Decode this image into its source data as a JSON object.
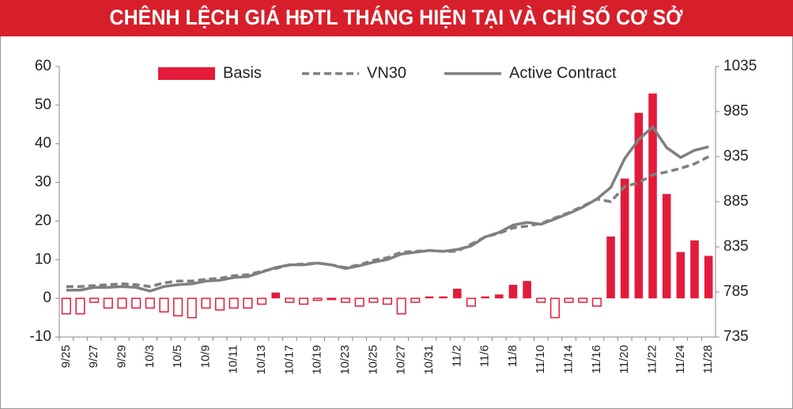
{
  "chart_data": {
    "type": "combo",
    "title": "CHÊNH LỆCH GIÁ HĐTL THÁNG HIỆN TẠI VÀ CHỈ SỐ CƠ SỞ",
    "categories": [
      "9/25",
      null,
      "9/27",
      null,
      "9/29",
      null,
      "10/3",
      null,
      "10/5",
      null,
      "10/9",
      null,
      "10/11",
      null,
      "10/13",
      null,
      "10/17",
      null,
      "10/19",
      null,
      "10/23",
      null,
      "10/25",
      null,
      "10/27",
      null,
      "10/31",
      null,
      "11/2",
      null,
      "11/6",
      null,
      "11/8",
      null,
      "11/10",
      null,
      "11/14",
      null,
      "11/16",
      null,
      "11/20",
      null,
      "11/22",
      null,
      "11/24",
      null,
      "11/28"
    ],
    "series": [
      {
        "name": "Basis",
        "type": "bar",
        "color": "#e31b3b",
        "values": [
          -4,
          -4,
          -1,
          -2.5,
          -2.5,
          -2.5,
          -2.5,
          -3.5,
          -4.5,
          -5,
          -2.5,
          -3,
          -2.5,
          -2.5,
          -1.5,
          1.5,
          -1,
          -1.5,
          -0.5,
          -0.3,
          -1,
          -2,
          -1,
          -1.5,
          -4,
          -1,
          0.5,
          0.5,
          2.5,
          -2,
          0.5,
          1,
          3.5,
          4.5,
          -1,
          -5,
          -1,
          -1,
          -2,
          16,
          31,
          48,
          53,
          27,
          12,
          15,
          11
        ]
      },
      {
        "name": "VN30",
        "type": "line",
        "style": "dashed",
        "axis": "y2",
        "color": "#7f7f7f",
        "values": [
          791,
          791,
          792,
          793,
          794,
          793,
          791,
          795,
          797,
          797,
          799,
          800,
          803,
          804,
          808,
          811,
          815,
          816,
          817,
          815,
          812,
          815,
          820,
          823,
          829,
          830,
          831,
          830,
          830,
          838,
          846,
          850,
          856,
          858,
          861,
          867,
          873,
          880,
          888,
          885,
          902,
          906,
          915,
          918,
          922,
          927,
          935
        ]
      },
      {
        "name": "Active Contract",
        "type": "line",
        "style": "solid",
        "axis": "y2",
        "color": "#7f7f7f",
        "values": [
          787,
          787,
          790,
          790,
          791,
          790,
          786,
          791,
          793,
          794,
          797,
          798,
          801,
          802,
          807,
          812,
          815,
          815,
          817,
          815,
          811,
          814,
          818,
          821,
          827,
          829,
          831,
          830,
          832,
          836,
          846,
          851,
          859,
          862,
          860,
          866,
          872,
          879,
          888,
          901,
          933,
          954,
          968,
          945,
          934,
          942,
          946
        ]
      }
    ],
    "ylim": [
      -10,
      60
    ],
    "yticks": [
      -10,
      0,
      10,
      20,
      30,
      40,
      50,
      60
    ],
    "y2lim": [
      735,
      1035
    ],
    "y2ticks": [
      735,
      785,
      835,
      885,
      935,
      985,
      1035
    ],
    "title_color": "#d71f2b"
  }
}
